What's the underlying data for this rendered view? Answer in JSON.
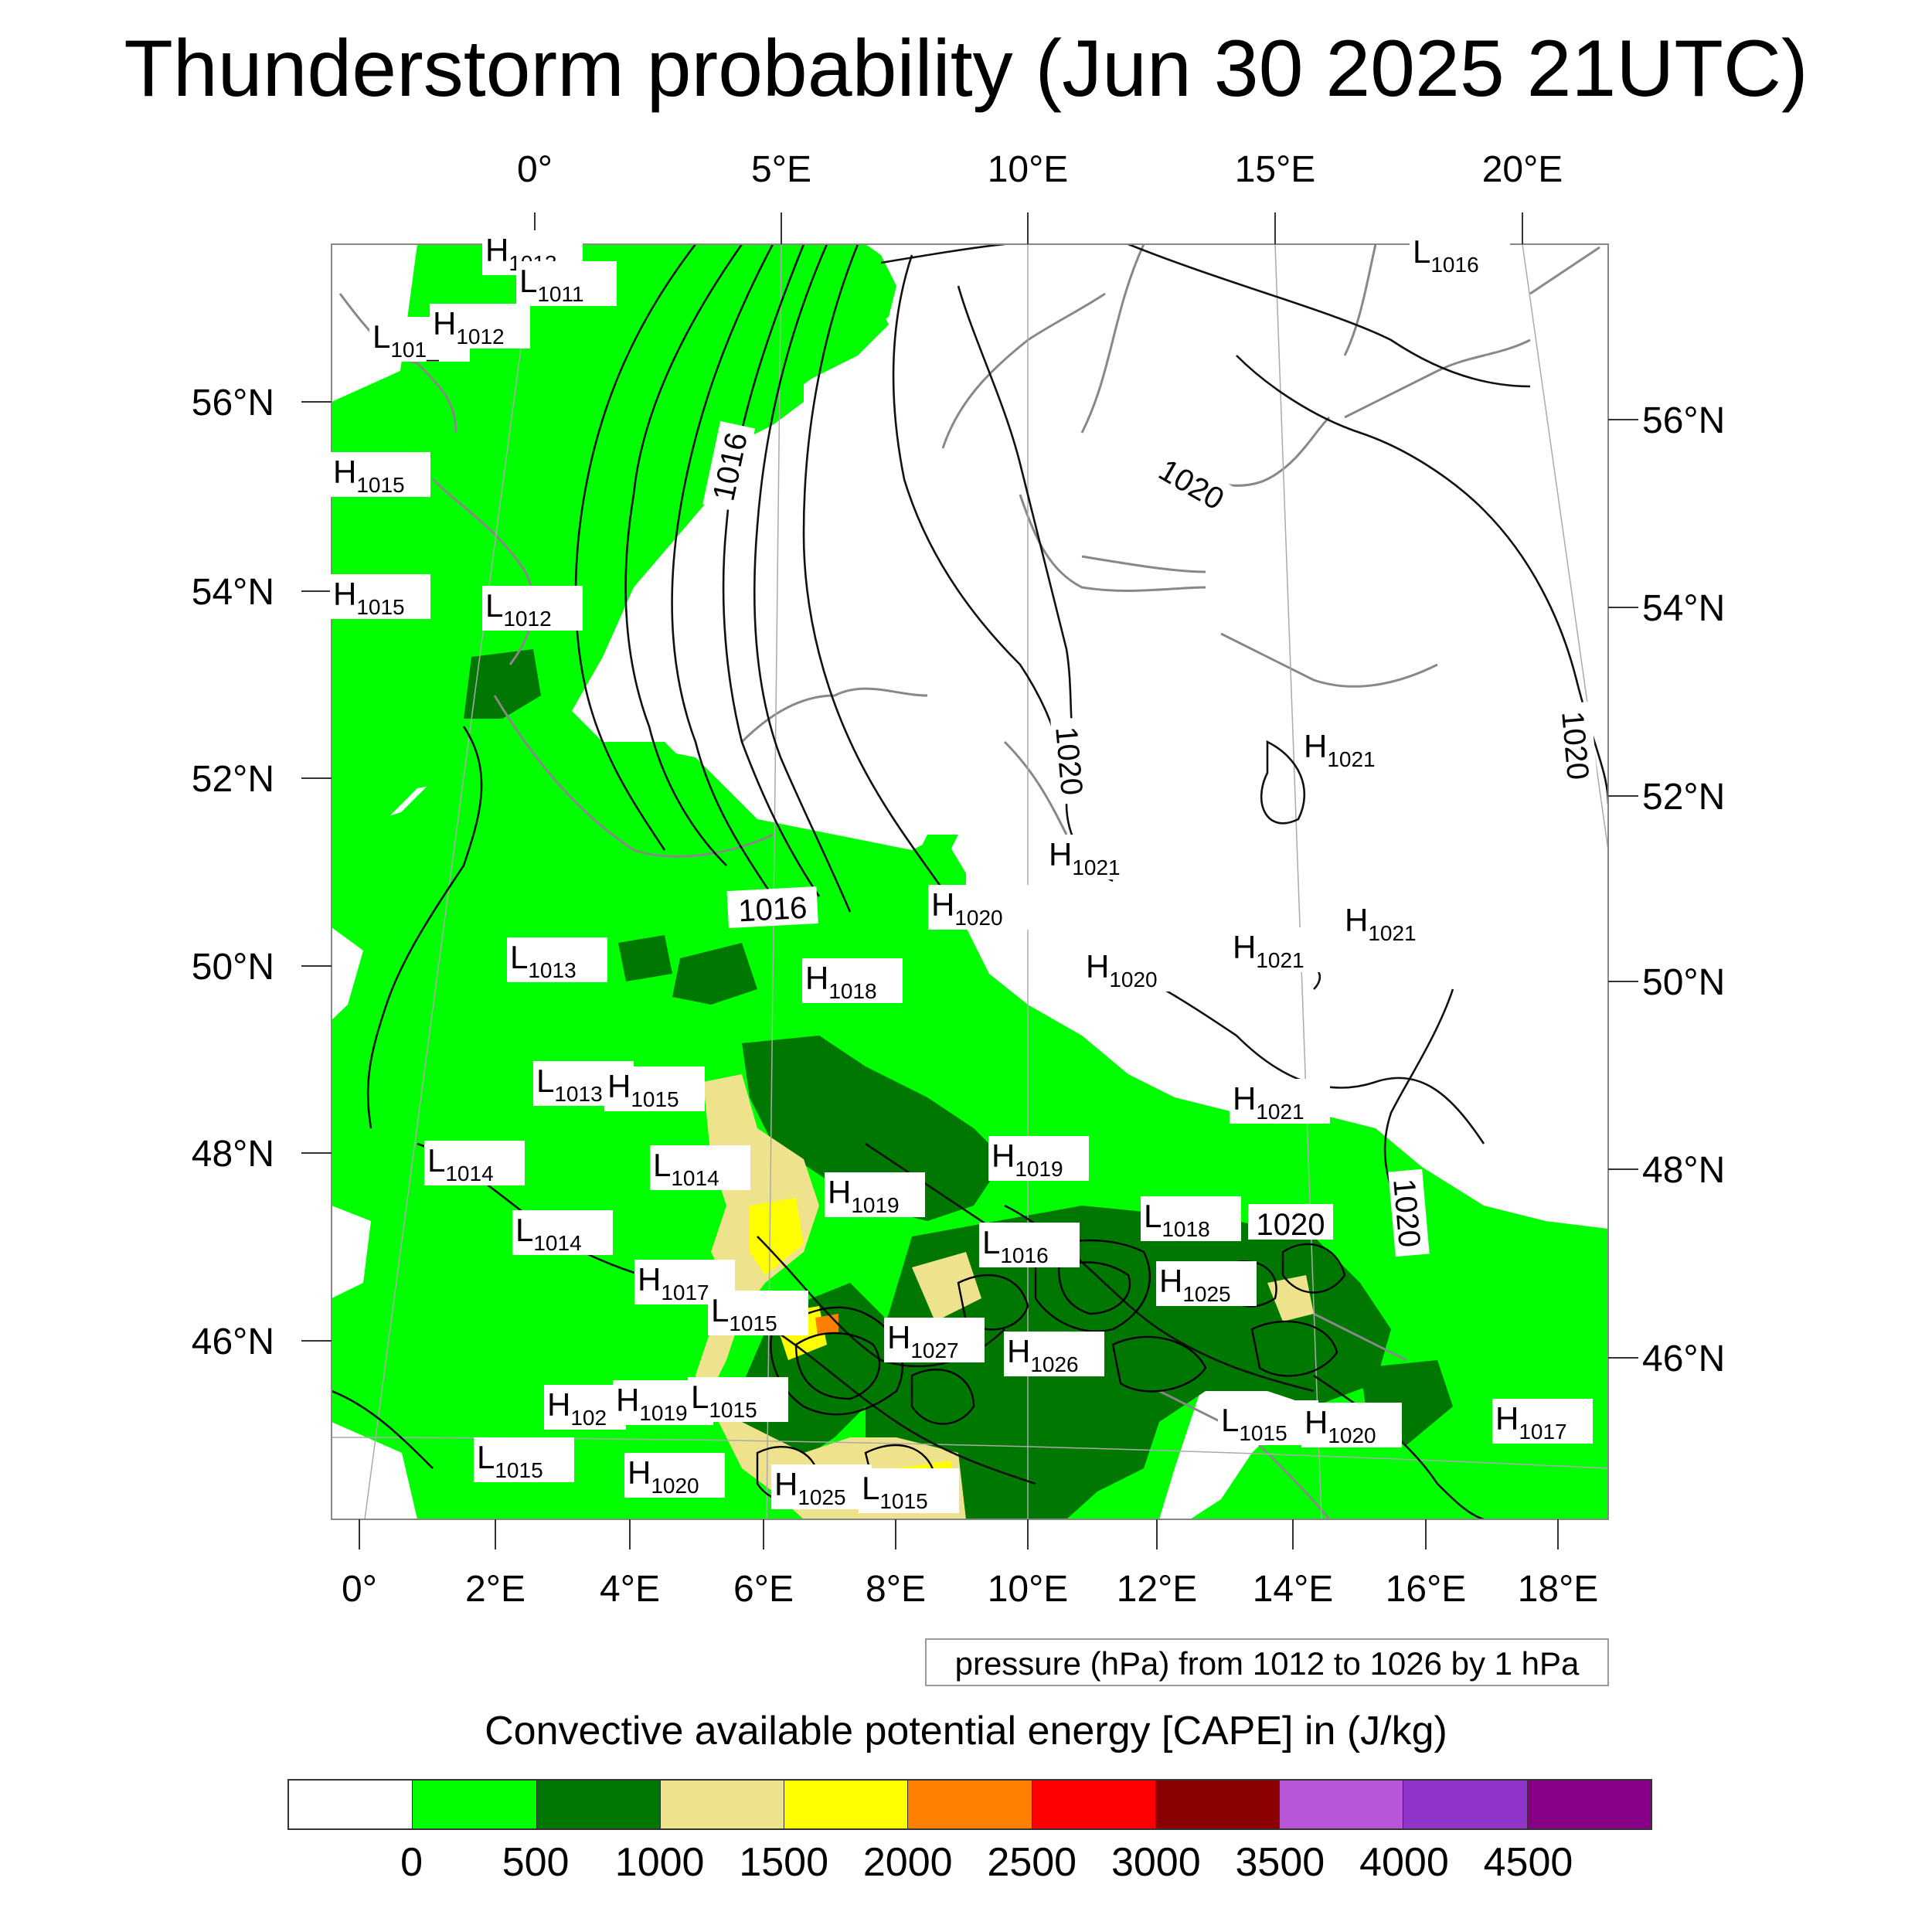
{
  "title": "Thunderstorm probability (Jun 30 2025 21UTC)",
  "map": {
    "top_lon_labels": [
      "0°",
      "5°E",
      "10°E",
      "15°E",
      "20°E"
    ],
    "bottom_lon_labels": [
      "0°",
      "2°E",
      "4°E",
      "6°E",
      "8°E",
      "10°E",
      "12°E",
      "14°E",
      "16°E",
      "18°E"
    ],
    "left_lat_labels": [
      "56°N",
      "54°N",
      "52°N",
      "50°N",
      "48°N",
      "46°N"
    ],
    "right_lat_labels": [
      "56°N",
      "54°N",
      "52°N",
      "50°N",
      "48°N",
      "46°N"
    ],
    "isobar_labels": [
      "1016",
      "1016",
      "1020",
      "1020",
      "1020",
      "1020",
      "1020"
    ],
    "pressure_centers": [
      {
        "type": "H",
        "value": "1013"
      },
      {
        "type": "L",
        "value": "1011"
      },
      {
        "type": "L",
        "value": "101_"
      },
      {
        "type": "H",
        "value": "1012"
      },
      {
        "type": "L",
        "value": "1016"
      },
      {
        "type": "H",
        "value": "1015"
      },
      {
        "type": "H",
        "value": "1015"
      },
      {
        "type": "L",
        "value": "1012"
      },
      {
        "type": "H",
        "value": "1021"
      },
      {
        "type": "H",
        "value": "1021"
      },
      {
        "type": "H",
        "value": "1020"
      },
      {
        "type": "L",
        "value": "1013"
      },
      {
        "type": "H",
        "value": "1018"
      },
      {
        "type": "H",
        "value": "1020"
      },
      {
        "type": "H",
        "value": "1021"
      },
      {
        "type": "H",
        "value": "1021"
      },
      {
        "type": "L",
        "value": "1013"
      },
      {
        "type": "H",
        "value": "1015"
      },
      {
        "type": "H",
        "value": "1021"
      },
      {
        "type": "L",
        "value": "1014"
      },
      {
        "type": "L",
        "value": "1014"
      },
      {
        "type": "H",
        "value": "1019"
      },
      {
        "type": "H",
        "value": "1019"
      },
      {
        "type": "L",
        "value": "1018"
      },
      {
        "type": "L",
        "value": "1014"
      },
      {
        "type": "L",
        "value": "1016"
      },
      {
        "type": "H",
        "value": "1017"
      },
      {
        "type": "H",
        "value": "1025"
      },
      {
        "type": "L",
        "value": "1015"
      },
      {
        "type": "H",
        "value": "1027"
      },
      {
        "type": "H",
        "value": "1026"
      },
      {
        "type": "H",
        "value": "102"
      },
      {
        "type": "H",
        "value": "1019"
      },
      {
        "type": "L",
        "value": "1015"
      },
      {
        "type": "L",
        "value": "1015"
      },
      {
        "type": "H",
        "value": "1020"
      },
      {
        "type": "H",
        "value": "1017"
      },
      {
        "type": "L",
        "value": "1015"
      },
      {
        "type": "H",
        "value": "1020"
      },
      {
        "type": "H",
        "value": "1025"
      },
      {
        "type": "L",
        "value": "1015"
      }
    ]
  },
  "pressure_note": "pressure (hPa) from 1012 to 1026 by 1 hPa",
  "colorbar": {
    "title": "Convective available potential energy [CAPE] in (J/kg)",
    "colors": [
      "#ffffff",
      "#00ff00",
      "#007700",
      "#efe28c",
      "#ffff00",
      "#ff8000",
      "#ff0000",
      "#8b0000",
      "#b955d7",
      "#9035c9",
      "#880088"
    ],
    "tick_labels": [
      "0",
      "500",
      "1000",
      "1500",
      "2000",
      "2500",
      "3000",
      "3500",
      "4000",
      "4500"
    ]
  }
}
